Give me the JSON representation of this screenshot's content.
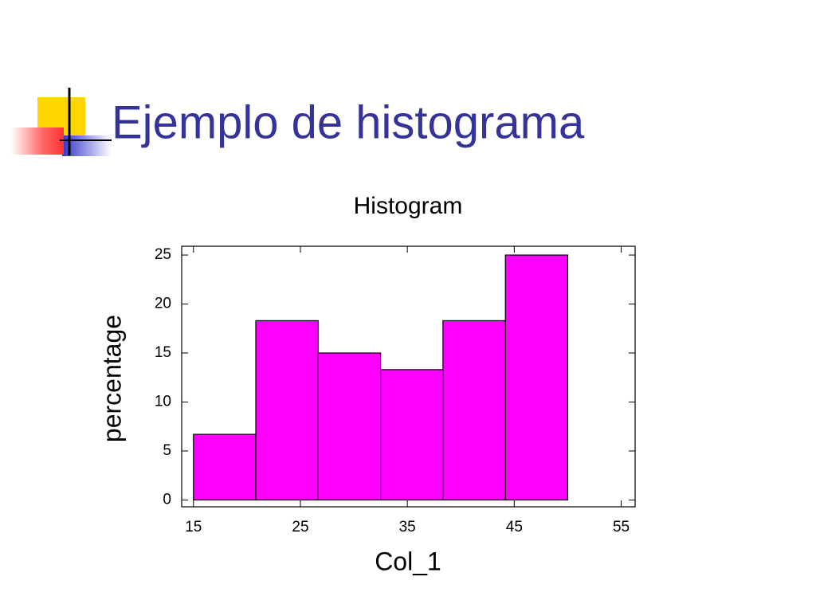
{
  "slide_title": "Ejemplo de histograma",
  "chart_data": {
    "type": "histogram",
    "title": "Histogram",
    "x_label": "Col_1",
    "y_label": "percentage",
    "bins": [
      15,
      20.83,
      26.67,
      32.5,
      38.33,
      44.17,
      50
    ],
    "values": [
      6.7,
      18.3,
      15,
      13.3,
      18.3,
      25
    ],
    "color": "#ff00ff",
    "xlim": [
      13.9,
      56.3
    ],
    "xticks": [
      15,
      25,
      35,
      45,
      55
    ],
    "ylim": [
      -0.7,
      25.9
    ],
    "yticks": [
      0,
      5,
      10,
      15,
      20,
      25
    ]
  }
}
